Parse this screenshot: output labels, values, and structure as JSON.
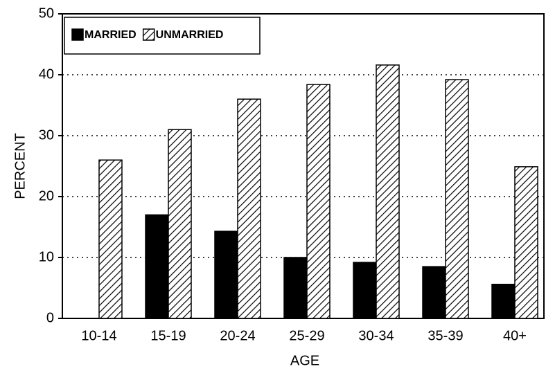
{
  "chart_data": {
    "type": "bar",
    "x_label": "AGE",
    "y_label": "PERCENT",
    "categories": [
      "10-14",
      "15-19",
      "20-24",
      "25-29",
      "30-34",
      "35-39",
      "40+"
    ],
    "series": [
      {
        "name": "MARRIED",
        "color": "#000000",
        "pattern": "solid",
        "values": [
          null,
          17,
          14.3,
          10,
          9.2,
          8.5,
          5.6
        ]
      },
      {
        "name": "UNMARRIED",
        "color": "#000000",
        "pattern": "hatch",
        "values": [
          26,
          31,
          36,
          38.4,
          41.6,
          39.2,
          24.9
        ]
      }
    ],
    "ylim": [
      0,
      50
    ],
    "yticks": [
      0,
      10,
      20,
      30,
      40,
      50
    ],
    "grid": true,
    "legend": "upper left"
  }
}
